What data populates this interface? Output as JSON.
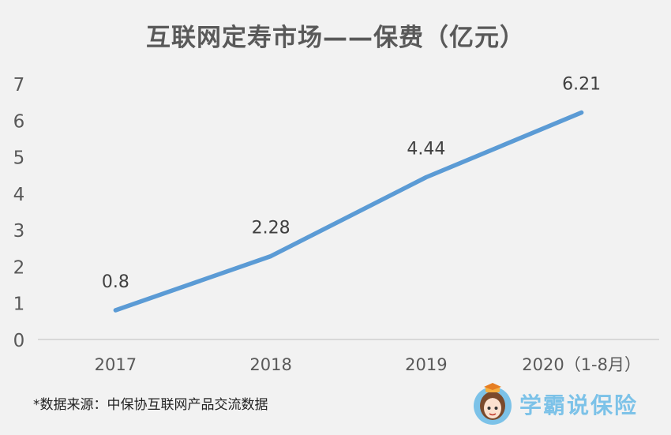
{
  "chart_data": {
    "type": "line",
    "title": "互联网定寿市场——保费（亿元）",
    "categories": [
      "2017",
      "2018",
      "2019",
      "2020（1-8月）"
    ],
    "series": [
      {
        "values": [
          0.8,
          2.28,
          4.44,
          6.21
        ],
        "color": "#5b9bd5"
      }
    ],
    "data_labels": [
      "0.8",
      "2.28",
      "4.44",
      "6.21"
    ],
    "ylim": [
      0,
      7
    ],
    "y_ticks": [
      0,
      1,
      2,
      3,
      4,
      5,
      6,
      7
    ],
    "grid": false,
    "legend": "none"
  },
  "source_note": "*数据来源：中保协互联网产品交流数据",
  "brand": {
    "name": "学霸说保险",
    "icon": "cartoon-girl-avatar-icon",
    "color": "#7cc2e8"
  }
}
